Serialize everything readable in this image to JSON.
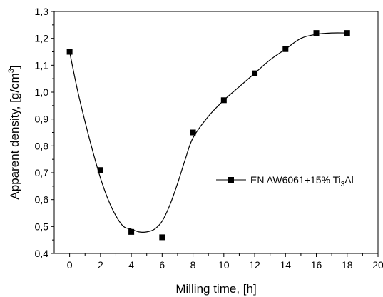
{
  "chart_data": {
    "type": "scatter",
    "title": "",
    "xlabel": "Milling time, [h]",
    "ylabel_parts": {
      "main": "Apparent density, [g/cm",
      "sup": "3",
      "end": "]"
    },
    "xlim": [
      -1,
      20
    ],
    "ylim": [
      0.4,
      1.3
    ],
    "x_ticks": [
      0,
      2,
      4,
      6,
      8,
      10,
      12,
      14,
      16,
      18,
      20
    ],
    "x_tick_labels": [
      "0",
      "2",
      "4",
      "6",
      "8",
      "10",
      "12",
      "14",
      "16",
      "18",
      "20"
    ],
    "y_ticks": [
      0.4,
      0.5,
      0.6,
      0.7,
      0.8,
      0.9,
      1.0,
      1.1,
      1.2,
      1.3
    ],
    "y_tick_labels": [
      "0,4",
      "0,5",
      "0,6",
      "0,7",
      "0,8",
      "0,9",
      "1,0",
      "1,1",
      "1,2",
      "1,3"
    ],
    "grid": false,
    "legend_position": "right",
    "series": [
      {
        "legend_parts": {
          "main": "EN AW6061+15% Ti",
          "sub": "3",
          "end": "Al"
        },
        "x": [
          0,
          2,
          4,
          6,
          8,
          10,
          12,
          14,
          16,
          18
        ],
        "y": [
          1.15,
          0.71,
          0.48,
          0.46,
          0.85,
          0.97,
          1.07,
          1.16,
          1.22,
          1.22
        ],
        "marker": "square",
        "color": "#000000"
      }
    ],
    "fit_curve": {
      "x": [
        0,
        0.5,
        1,
        1.5,
        2,
        2.5,
        3,
        3.5,
        4,
        4.5,
        5,
        5.5,
        6,
        6.5,
        7,
        7.5,
        8,
        9,
        10,
        11,
        12,
        13,
        14,
        15,
        16,
        17,
        18
      ],
      "y": [
        1.15,
        1.01,
        0.89,
        0.78,
        0.68,
        0.6,
        0.54,
        0.5,
        0.49,
        0.48,
        0.48,
        0.49,
        0.52,
        0.58,
        0.66,
        0.75,
        0.83,
        0.91,
        0.97,
        1.02,
        1.07,
        1.12,
        1.16,
        1.2,
        1.215,
        1.22,
        1.22
      ],
      "color": "#000000"
    }
  }
}
